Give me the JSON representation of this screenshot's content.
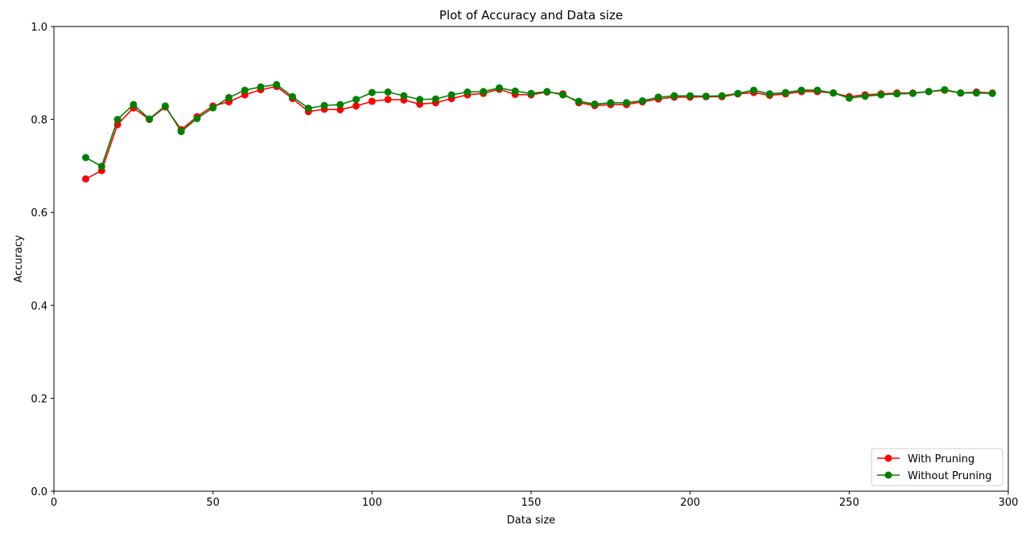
{
  "chart_data": {
    "type": "line",
    "title": "Plot of Accuracy and Data size",
    "xlabel": "Data size",
    "ylabel": "Accuracy",
    "xlim": [
      0,
      300
    ],
    "ylim": [
      0,
      1.0
    ],
    "xticks": [
      "0",
      "50",
      "100",
      "150",
      "200",
      "250",
      "300"
    ],
    "yticks": [
      "0.0",
      "0.2",
      "0.4",
      "0.6",
      "0.8",
      "1.0"
    ],
    "grid": false,
    "legend_position": "bottom-right",
    "x": [
      10,
      15,
      20,
      25,
      30,
      35,
      40,
      45,
      50,
      55,
      60,
      65,
      70,
      75,
      80,
      85,
      90,
      95,
      100,
      105,
      110,
      115,
      120,
      125,
      130,
      135,
      140,
      145,
      150,
      155,
      160,
      165,
      170,
      175,
      180,
      185,
      190,
      195,
      200,
      205,
      210,
      215,
      220,
      225,
      230,
      235,
      240,
      245,
      250,
      255,
      260,
      265,
      270,
      275,
      280,
      285,
      290,
      295
    ],
    "series": [
      {
        "name": "With Pruning",
        "color": "#ff0000",
        "values": [
          0.672,
          0.69,
          0.789,
          0.825,
          0.8,
          0.827,
          0.778,
          0.806,
          0.829,
          0.838,
          0.853,
          0.864,
          0.871,
          0.845,
          0.817,
          0.822,
          0.821,
          0.829,
          0.839,
          0.843,
          0.842,
          0.833,
          0.836,
          0.845,
          0.853,
          0.856,
          0.865,
          0.854,
          0.853,
          0.859,
          0.855,
          0.836,
          0.83,
          0.832,
          0.832,
          0.838,
          0.844,
          0.848,
          0.848,
          0.849,
          0.849,
          0.855,
          0.858,
          0.852,
          0.855,
          0.86,
          0.86,
          0.857,
          0.849,
          0.853,
          0.855,
          0.857,
          0.857,
          0.86,
          0.863,
          0.857,
          0.859,
          0.857
        ]
      },
      {
        "name": "Without Pruning",
        "color": "#008000",
        "values": [
          0.718,
          0.699,
          0.8,
          0.832,
          0.801,
          0.829,
          0.774,
          0.802,
          0.825,
          0.847,
          0.863,
          0.87,
          0.875,
          0.849,
          0.824,
          0.83,
          0.832,
          0.843,
          0.858,
          0.859,
          0.851,
          0.843,
          0.844,
          0.853,
          0.859,
          0.86,
          0.868,
          0.861,
          0.856,
          0.86,
          0.853,
          0.839,
          0.833,
          0.836,
          0.836,
          0.84,
          0.848,
          0.851,
          0.851,
          0.85,
          0.851,
          0.856,
          0.863,
          0.855,
          0.858,
          0.863,
          0.863,
          0.857,
          0.846,
          0.85,
          0.853,
          0.855,
          0.856,
          0.86,
          0.864,
          0.857,
          0.857,
          0.856
        ]
      }
    ]
  }
}
